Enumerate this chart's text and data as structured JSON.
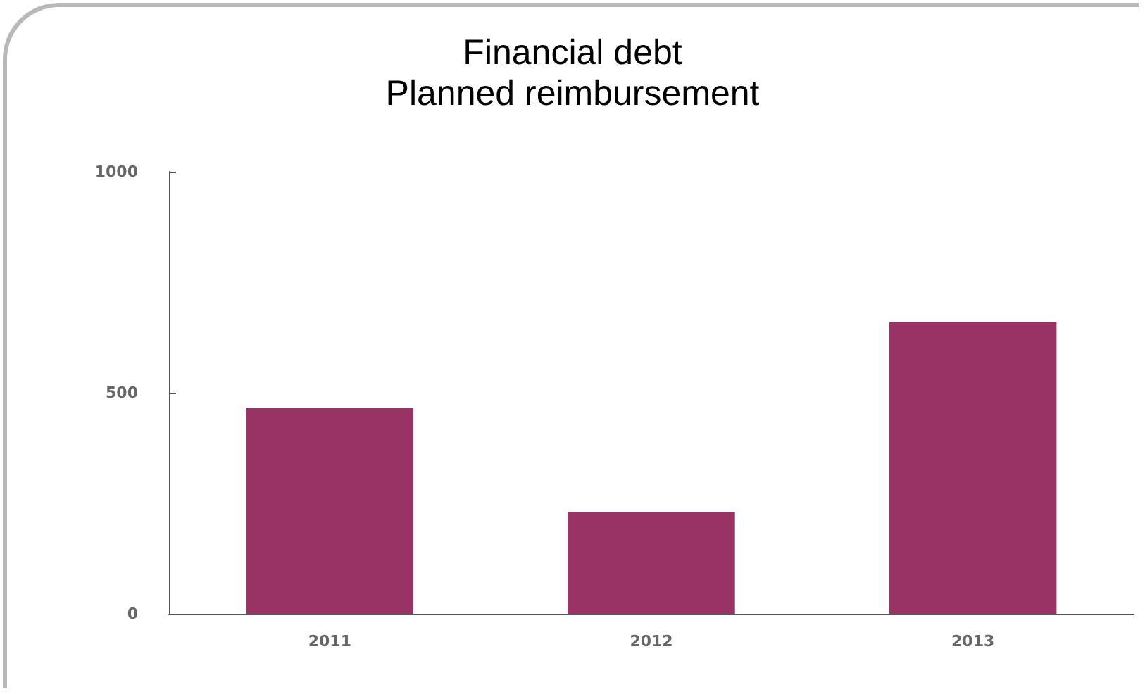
{
  "chart_data": {
    "type": "bar",
    "title": "Financial debt\nPlanned reimbursement",
    "categories": [
      "2011",
      "2012",
      "2013"
    ],
    "values": [
      465,
      230,
      660
    ],
    "color": "#993366",
    "ylim": [
      0,
      1000
    ],
    "yticks": [
      0,
      500,
      1000
    ],
    "grid": false
  }
}
